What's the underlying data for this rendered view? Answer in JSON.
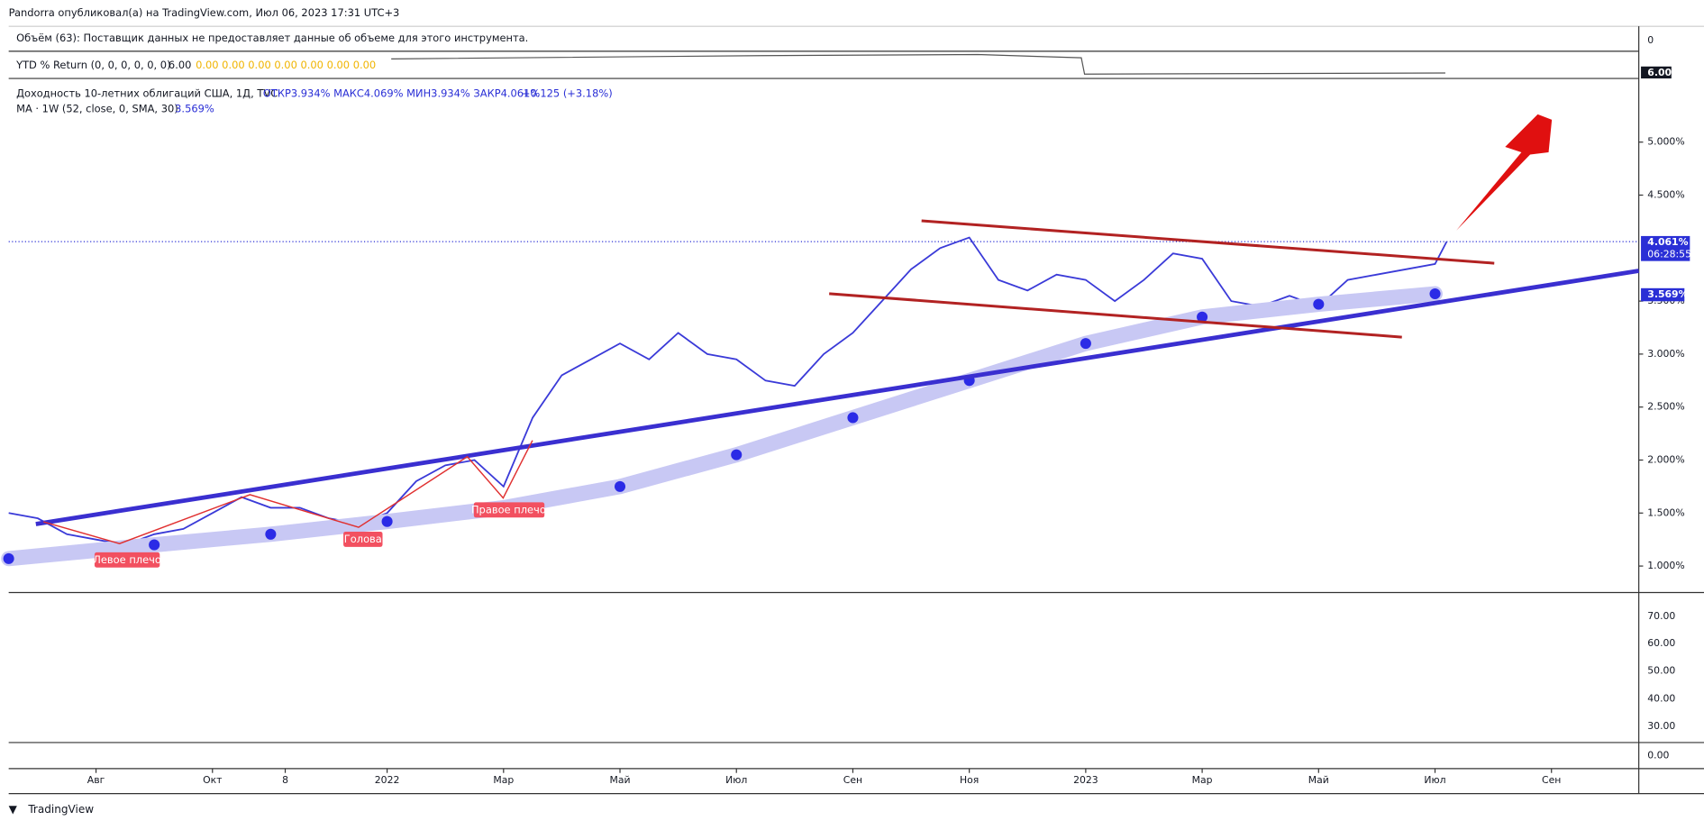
{
  "header": {
    "author_line": "Pandorra опубликовал(а) на TradingView.com, Июл 06, 2023 17:31 UTC+3",
    "volume_line": "Объём (63): Поставщик данных не предоставляет данные об объеме для этого инструмента.",
    "volume_axis": "0",
    "ytd_name": "YTD % Return (0, 0, 0, 0, 0, 0)",
    "ytd_value": "6.00",
    "ytd_zeros": "0.00 0.00 0.00 0.00 0.00 0.00 0.00",
    "ytd_axis": "6.00"
  },
  "chart_data": {
    "type": "line",
    "legend_main": "Доходность 10-летних облигаций США, 1Д, TVC",
    "legend_ohlc": "ОТКР3.934%  МАКС4.069%  МИН3.934%  ЗАКР4.061%",
    "legend_change": "+0.125 (+3.18%)",
    "legend_ma": "MA · 1W (52, close, 0, SMA, 30)",
    "legend_ma_value": "3.569%",
    "last_price_label": "4.061%",
    "countdown": "06:28:55",
    "ma_price_label": "3.569%",
    "annotations": [
      "Левое плечо",
      "Голова",
      "Правое плечо"
    ],
    "xlim": [
      -0.5,
      27.5
    ],
    "xticks": [
      {
        "value": 1,
        "label": "Авг"
      },
      {
        "value": 3,
        "label": "Окт"
      },
      {
        "value": 4.25,
        "label": "8"
      },
      {
        "value": 6,
        "label": "2022"
      },
      {
        "value": 8,
        "label": "Мар"
      },
      {
        "value": 10,
        "label": "Май"
      },
      {
        "value": 12,
        "label": "Июл"
      },
      {
        "value": 14,
        "label": "Сен"
      },
      {
        "value": 16,
        "label": "Ноя"
      },
      {
        "value": 18,
        "label": "2023"
      },
      {
        "value": 20,
        "label": "Мар"
      },
      {
        "value": 22,
        "label": "Май"
      },
      {
        "value": 24,
        "label": "Июл"
      },
      {
        "value": 26,
        "label": "Сен"
      }
    ],
    "ylim": [
      0.75,
      5.57
    ],
    "yticks": [
      {
        "value": 1,
        "label": "1.000%"
      },
      {
        "value": 1.5,
        "label": "1.500%"
      },
      {
        "value": 2,
        "label": "2.000%"
      },
      {
        "value": 2.5,
        "label": "2.500%"
      },
      {
        "value": 3,
        "label": "3.000%"
      },
      {
        "value": 3.5,
        "label": "3.500%"
      },
      {
        "value": 4.5,
        "label": "4.500%"
      },
      {
        "value": 5,
        "label": "5.000%"
      }
    ],
    "series": [
      {
        "name": "Доходность",
        "color": "#3a3ad8",
        "x": [
          -0.5,
          0,
          0.5,
          1,
          1.5,
          2,
          2.5,
          3,
          3.5,
          4,
          4.5,
          5,
          5.5,
          6,
          6.5,
          7,
          7.5,
          8,
          8.5,
          9,
          9.5,
          10,
          10.5,
          11,
          11.5,
          12,
          12.5,
          13,
          13.5,
          14,
          14.5,
          15,
          15.5,
          16,
          16.5,
          17,
          17.5,
          18,
          18.5,
          19,
          19.5,
          20,
          20.5,
          21,
          21.5,
          22,
          22.5,
          23,
          23.5,
          24,
          24.2
        ],
        "values": [
          1.5,
          1.45,
          1.3,
          1.25,
          1.2,
          1.3,
          1.35,
          1.5,
          1.65,
          1.55,
          1.55,
          1.45,
          1.4,
          1.5,
          1.8,
          1.95,
          2.0,
          1.75,
          2.4,
          2.8,
          2.95,
          3.1,
          2.95,
          3.2,
          3.0,
          2.95,
          2.75,
          2.7,
          3.0,
          3.2,
          3.5,
          3.8,
          4.0,
          4.1,
          3.7,
          3.6,
          3.75,
          3.7,
          3.5,
          3.7,
          3.95,
          3.9,
          3.5,
          3.45,
          3.55,
          3.45,
          3.7,
          3.75,
          3.8,
          3.85,
          4.061
        ]
      },
      {
        "name": "MA",
        "color": "#2b2be6",
        "x": [
          -0.5,
          2,
          4,
          6,
          8,
          10,
          12,
          14,
          16,
          18,
          20,
          22,
          24
        ],
        "values": [
          1.07,
          1.2,
          1.3,
          1.42,
          1.55,
          1.75,
          2.05,
          2.4,
          2.75,
          3.1,
          3.35,
          3.47,
          3.569
        ]
      }
    ]
  },
  "lower_pane": {
    "ticks": [
      "70.00",
      "60.00",
      "50.00",
      "40.00",
      "30.00"
    ],
    "bottom_tick": "0.00"
  },
  "footer": {
    "brand": "TradingView"
  }
}
